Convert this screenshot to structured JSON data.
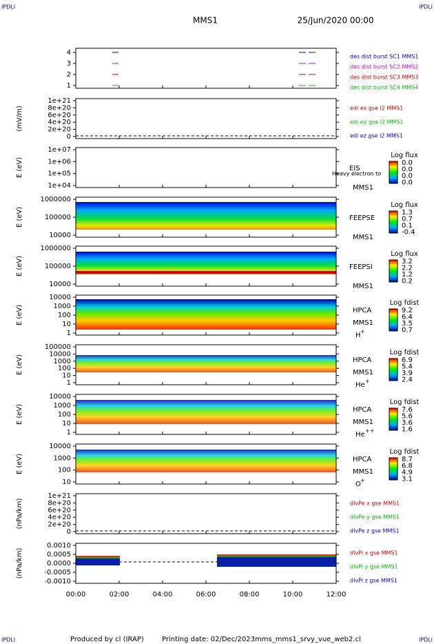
{
  "header": {
    "corner_left": "IPDLI",
    "corner_right": "IPDLI",
    "spacecraft": "MMS1",
    "date": "25/Jun/2020 00:00"
  },
  "panels": [
    {
      "yticks": [
        "4",
        "3",
        "2",
        "1"
      ],
      "legend": [
        {
          "text": "des dist burst SC1 MMS1",
          "color": "#0000cc"
        },
        {
          "text": "des dist burst SC2 MMS2",
          "color": "#cc00cc"
        },
        {
          "text": "des dist burst SC3 MMS3",
          "color": "#cc0000"
        },
        {
          "text": "des dist burst SC4 MMS4",
          "color": "#00bb00"
        }
      ]
    },
    {
      "ylabel": "(mV/m)",
      "yticks": [
        "1e+21",
        "8e+20",
        "6e+20",
        "4e+20",
        "2e+20",
        "0"
      ],
      "legend": [
        {
          "text": "edi ex gse l2 MMS1",
          "color": "#cc0000"
        },
        {
          "text": "edi ey gse l2 MMS1",
          "color": "#00bb00"
        },
        {
          "text": "edi ez gse l2 MMS1",
          "color": "#0000cc"
        }
      ]
    },
    {
      "ylabel": "E (eV)",
      "yticks": [
        "1e+07",
        "1e+06",
        "1e+05",
        "1e+04"
      ],
      "instrument": "EIS",
      "spacecraft": "MMS1",
      "note": "Heavy electron to",
      "colorbar": {
        "title": "Log flux",
        "labels": [
          "0.0",
          "0.0",
          "0.0",
          "0.0"
        ]
      }
    },
    {
      "ylabel": "E (eV)",
      "yticks": [
        "1000000",
        "100000",
        "10000"
      ],
      "instrument": "FEEPSE",
      "spacecraft": "MMS1",
      "colorbar": {
        "title": "Log flux",
        "labels": [
          "1.3",
          "0.7",
          "0.1",
          "-0.4"
        ]
      }
    },
    {
      "ylabel": "E (eV)",
      "yticks": [
        "1000000",
        "100000",
        "10000"
      ],
      "instrument": "FEEPSI",
      "spacecraft": "MMS1",
      "colorbar": {
        "title": "Log flux",
        "labels": [
          "3.2",
          "2.2",
          "1.2",
          "0.2"
        ]
      }
    },
    {
      "ylabel": "E (eV)",
      "yticks": [
        "10000",
        "1000",
        "100",
        "10",
        "1"
      ],
      "instrument": "HPCA",
      "spacecraft": "MMS1",
      "species": "H",
      "charge": "+",
      "colorbar": {
        "title": "Log fdist",
        "labels": [
          "9.2",
          "6.4",
          "3.5",
          "0.7"
        ]
      }
    },
    {
      "ylabel": "E (eV)",
      "yticks": [
        "100000",
        "10000",
        "1000",
        "100",
        "10",
        "1"
      ],
      "instrument": "HPCA",
      "spacecraft": "MMS1",
      "species": "He",
      "charge": "+",
      "colorbar": {
        "title": "Log fdist",
        "labels": [
          "6.9",
          "5.4",
          "3.9",
          "2.4"
        ]
      }
    },
    {
      "ylabel": "E (eV)",
      "yticks": [
        "10000",
        "1000",
        "100",
        "10",
        "1"
      ],
      "instrument": "HPCA",
      "spacecraft": "MMS1",
      "species": "He",
      "charge": "++",
      "colorbar": {
        "title": "Log fdist",
        "labels": [
          "7.6",
          "5.6",
          "3.6",
          "1.6"
        ]
      }
    },
    {
      "ylabel": "E (eV)",
      "yticks": [
        "10000",
        "1000",
        "100",
        "10"
      ],
      "instrument": "HPCA",
      "spacecraft": "MMS1",
      "species": "O",
      "charge": "+",
      "colorbar": {
        "title": "Log fdist",
        "labels": [
          "8.7",
          "6.8",
          "4.9",
          "3.1"
        ]
      }
    },
    {
      "ylabel": "(nPa/km)",
      "yticks": [
        "1e+21",
        "8e+20",
        "6e+20",
        "4e+20",
        "2e+20",
        "0"
      ],
      "legend": [
        {
          "text": "dIvPe x gse MMS1",
          "color": "#cc0000"
        },
        {
          "text": "dIvPe y gse MMS1",
          "color": "#00bb00"
        },
        {
          "text": "dIvPe z gse MMS1",
          "color": "#0000cc"
        }
      ]
    },
    {
      "ylabel": "(nPa/km)",
      "yticks": [
        "0.0010",
        "0.0005",
        "0.0000",
        "-0.0005",
        "-0.0010"
      ],
      "legend": [
        {
          "text": "dIvPi x gse MMS1",
          "color": "#cc0000"
        },
        {
          "text": "dIvPi y gse MMS1",
          "color": "#00bb00"
        },
        {
          "text": "dIvPi z gse MMS1",
          "color": "#0000cc"
        }
      ]
    }
  ],
  "xticks": [
    "00:00",
    "02:00",
    "04:00",
    "06:00",
    "08:00",
    "10:00",
    "12:00"
  ],
  "footer": {
    "producer": "Produced by cl (IRAP)",
    "printing": "Printing date: 02/Dec/2023",
    "file": "mms_mms1_srvy_vue_web2.cl"
  }
}
